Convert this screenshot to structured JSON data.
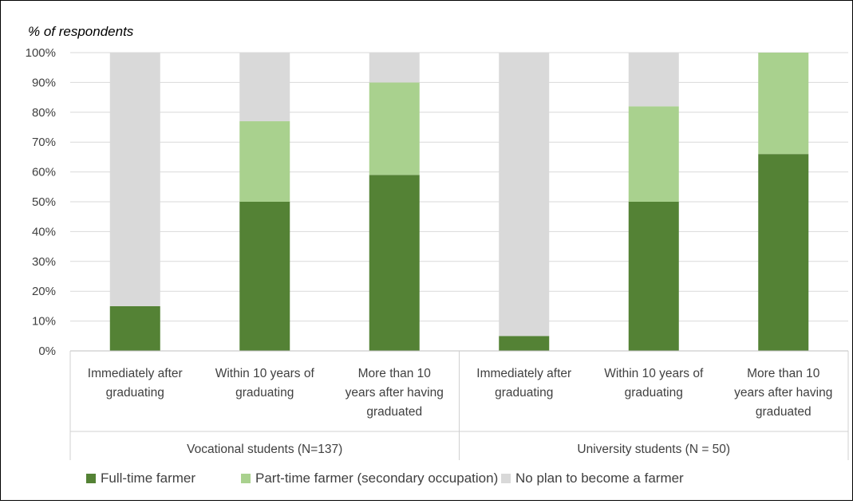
{
  "chart_data": {
    "type": "bar",
    "stacked": true,
    "percent_stacked": true,
    "ylabel": "% of respondents",
    "ylim": [
      0,
      100
    ],
    "yticks": [
      "0%",
      "10%",
      "20%",
      "30%",
      "40%",
      "50%",
      "60%",
      "70%",
      "80%",
      "90%",
      "100%"
    ],
    "grid": true,
    "legend_position": "bottom",
    "groups": [
      {
        "label": "Vocational students (N=137)",
        "categories": [
          [
            "Immediately after",
            "graduating"
          ],
          [
            "Within 10 years of",
            "graduating"
          ],
          [
            "More than 10",
            "years after having",
            "graduated"
          ]
        ]
      },
      {
        "label": "University students (N = 50)",
        "categories": [
          [
            "Immediately after",
            "graduating"
          ],
          [
            "Within 10 years of",
            "graduating"
          ],
          [
            "More than 10",
            "years after having",
            "graduated"
          ]
        ]
      }
    ],
    "series": [
      {
        "name": "Full-time  farmer",
        "color": "#548235",
        "values": [
          15,
          50,
          59,
          5,
          50,
          66
        ]
      },
      {
        "name": "Part-time farmer (secondary occupation)",
        "color": "#a9d18e",
        "values": [
          0,
          27,
          31,
          0,
          32,
          34
        ]
      },
      {
        "name": "No plan to become a farmer",
        "color": "#d9d9d9",
        "values": [
          85,
          23,
          10,
          95,
          18,
          0
        ]
      }
    ]
  }
}
